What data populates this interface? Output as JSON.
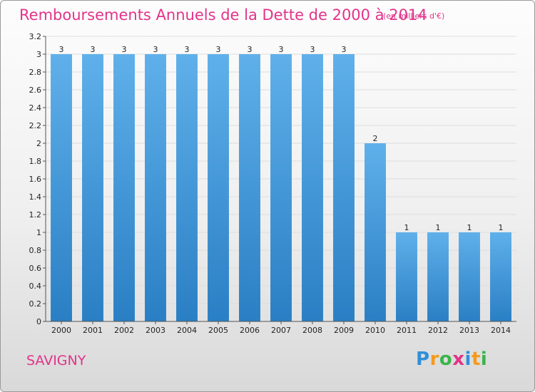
{
  "title": "Remboursements Annuels de la Dette de 2000 à 2014",
  "subtitle": "(en milliers d'€)",
  "commune": "SAVIGNY",
  "logo": {
    "text": "Proxiti",
    "letters": [
      {
        "ch": "P",
        "color": "#2f8fd8"
      },
      {
        "ch": "r",
        "color": "#f39a1e"
      },
      {
        "ch": "o",
        "color": "#3ab54a"
      },
      {
        "ch": "x",
        "color": "#e3338a"
      },
      {
        "ch": "i",
        "color": "#2f8fd8"
      },
      {
        "ch": "t",
        "color": "#f39a1e"
      },
      {
        "ch": "i",
        "color": "#3ab54a"
      }
    ]
  },
  "colors": {
    "title": "#e3338a",
    "bar_top": "#5fb0ea",
    "bar_bottom": "#2a7fc4",
    "grid": "#dddddd",
    "axis_text": "#222222"
  },
  "chart_data": {
    "type": "bar",
    "categories": [
      "2000",
      "2001",
      "2002",
      "2003",
      "2004",
      "2005",
      "2006",
      "2007",
      "2008",
      "2009",
      "2010",
      "2011",
      "2012",
      "2013",
      "2014"
    ],
    "values": [
      3,
      3,
      3,
      3,
      3,
      3,
      3,
      3,
      3,
      3,
      2,
      1,
      1,
      1,
      1
    ],
    "data_labels": [
      "3",
      "3",
      "3",
      "3",
      "3",
      "3",
      "3",
      "3",
      "3",
      "3",
      "2",
      "1",
      "1",
      "1",
      "1"
    ],
    "ylim": [
      0,
      3.2
    ],
    "yticks": [
      0,
      0.2,
      0.4,
      0.6,
      0.8,
      1,
      1.2,
      1.4,
      1.6,
      1.8,
      2,
      2.2,
      2.4,
      2.6,
      2.8,
      3,
      3.2
    ],
    "ytick_labels": [
      "0",
      "0.2",
      "0.4",
      "0.6",
      "0.8",
      "1",
      "1.2",
      "1.4",
      "1.6",
      "1.8",
      "2",
      "2.2",
      "2.4",
      "2.6",
      "2.8",
      "3",
      "3.2"
    ],
    "xlabel": "",
    "ylabel": "",
    "grid": true
  }
}
